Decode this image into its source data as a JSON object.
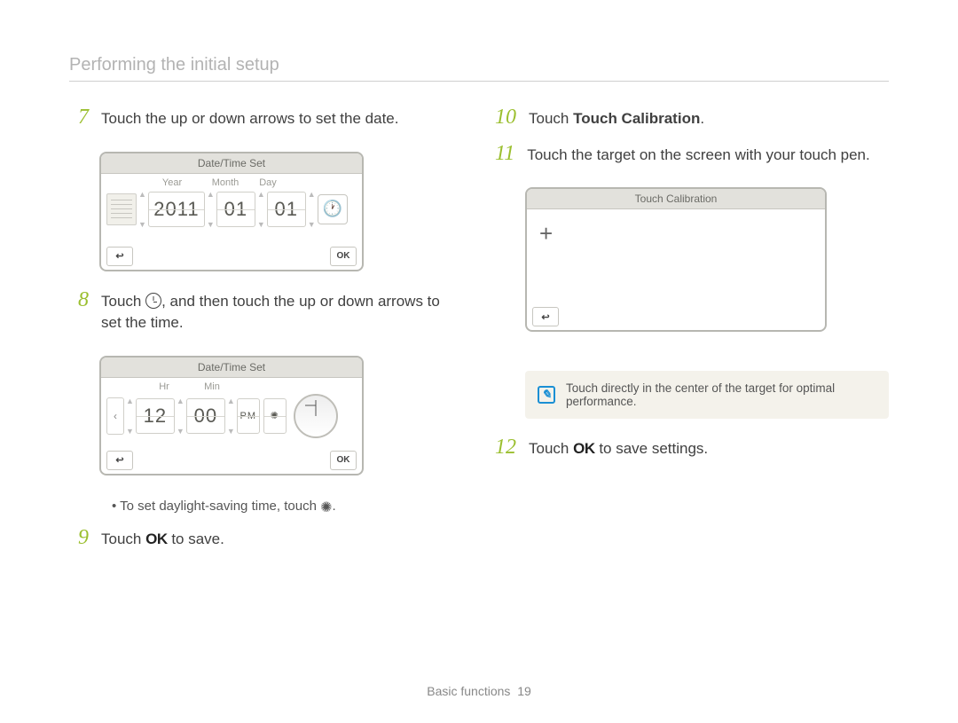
{
  "header": {
    "title": "Performing the initial setup"
  },
  "steps": {
    "s7": {
      "num": "7",
      "text": "Touch the up or down arrows to set the date."
    },
    "s8": {
      "num": "8",
      "pre": "Touch ",
      "post": ", and then touch the up or down arrows to set the time."
    },
    "s8_bullet": "To set daylight-saving time, touch ",
    "s9": {
      "num": "9",
      "pre": "Touch ",
      "ok": "OK",
      "post": " to save."
    },
    "s10": {
      "num": "10",
      "pre": "Touch ",
      "bold": "Touch Calibration",
      "post": "."
    },
    "s11": {
      "num": "11",
      "text": "Touch the target on the screen with your touch pen."
    },
    "s12": {
      "num": "12",
      "pre": "Touch ",
      "ok": "OK",
      "post": " to save settings."
    }
  },
  "device_date": {
    "title": "Date/Time Set",
    "labels": {
      "year": "Year",
      "month": "Month",
      "day": "Day"
    },
    "values": {
      "year": "2011",
      "month": "01",
      "day": "01"
    },
    "ok": "OK",
    "back": "↩"
  },
  "device_time": {
    "title": "Date/Time Set",
    "labels": {
      "hr": "Hr",
      "min": "Min"
    },
    "values": {
      "hr": "12",
      "min": "00",
      "ampm": "PM",
      "dst": "✺"
    },
    "ok": "OK",
    "back": "↩"
  },
  "device_cal": {
    "title": "Touch Calibration",
    "target": "+",
    "back": "↩"
  },
  "note": {
    "icon": "✓",
    "text": "Touch directly in the center of the target for optimal performance."
  },
  "footer": {
    "section": "Basic functions",
    "page": "19"
  }
}
